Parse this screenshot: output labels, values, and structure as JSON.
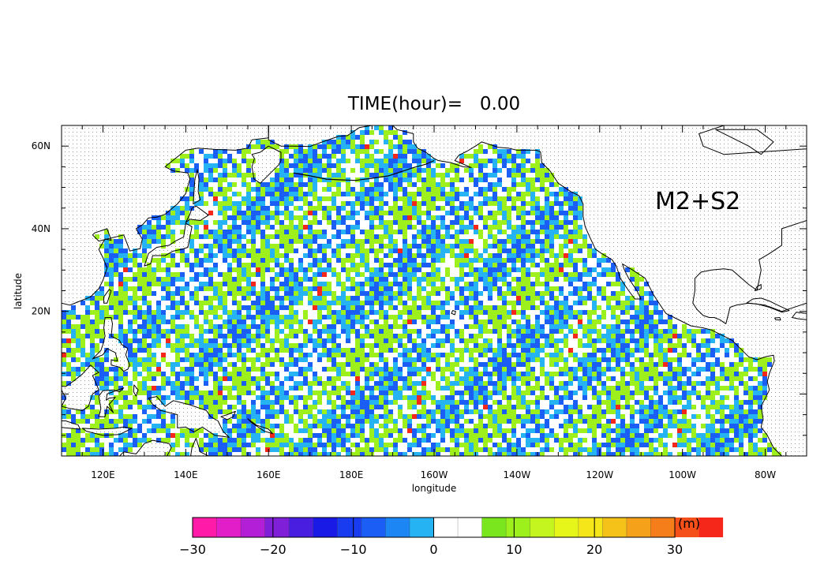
{
  "title": "TIME(hour)=   0.00",
  "annotation": "M2+S2",
  "chart_data": {
    "type": "heatmap",
    "title": "TIME(hour)=   0.00",
    "xlabel": "longitude",
    "ylabel": "latitude",
    "xlim_deg_east": [
      110,
      290
    ],
    "ylim_deg_north": [
      -15,
      65
    ],
    "x_ticks": [
      {
        "lon": 120,
        "label": "120E"
      },
      {
        "lon": 140,
        "label": "140E"
      },
      {
        "lon": 160,
        "label": "160E"
      },
      {
        "lon": 180,
        "label": "180E"
      },
      {
        "lon": 200,
        "label": "160W"
      },
      {
        "lon": 220,
        "label": "140W"
      },
      {
        "lon": 240,
        "label": "120W"
      },
      {
        "lon": 260,
        "label": "100W"
      },
      {
        "lon": 280,
        "label": "80W"
      }
    ],
    "y_ticks": [
      {
        "lat": 60,
        "label": "60N"
      },
      {
        "lat": 40,
        "label": "40N"
      },
      {
        "lat": 20,
        "label": "20N"
      }
    ],
    "annotation": "M2+S2",
    "colorbar": {
      "unit": "(m)",
      "min": -30,
      "max": 30,
      "step": 3,
      "tick_labels": [
        "−30",
        "−20",
        "−10",
        "0",
        "10",
        "20",
        "30"
      ],
      "tick_values": [
        -30,
        -20,
        -10,
        0,
        10,
        20,
        30
      ],
      "colors": [
        "#ff1aa8",
        "#e21ec9",
        "#b31fd6",
        "#7f1fd8",
        "#4a1ee0",
        "#1a1ae6",
        "#1a3cf0",
        "#1a5ef5",
        "#1c86f5",
        "#26b3f3",
        "#ffffff",
        "#ffffff",
        "#7ae61e",
        "#9df01c",
        "#c4f51f",
        "#e6f51a",
        "#f5e61a",
        "#f5c21a",
        "#f5a21a",
        "#f57d1a",
        "#f5501a",
        "#f5261a"
      ]
    },
    "field_description_colors": {
      "low": "#1a5ef5",
      "mid": "#26b3f3",
      "high": "#9df01c",
      "peak": "#f5261a"
    }
  }
}
